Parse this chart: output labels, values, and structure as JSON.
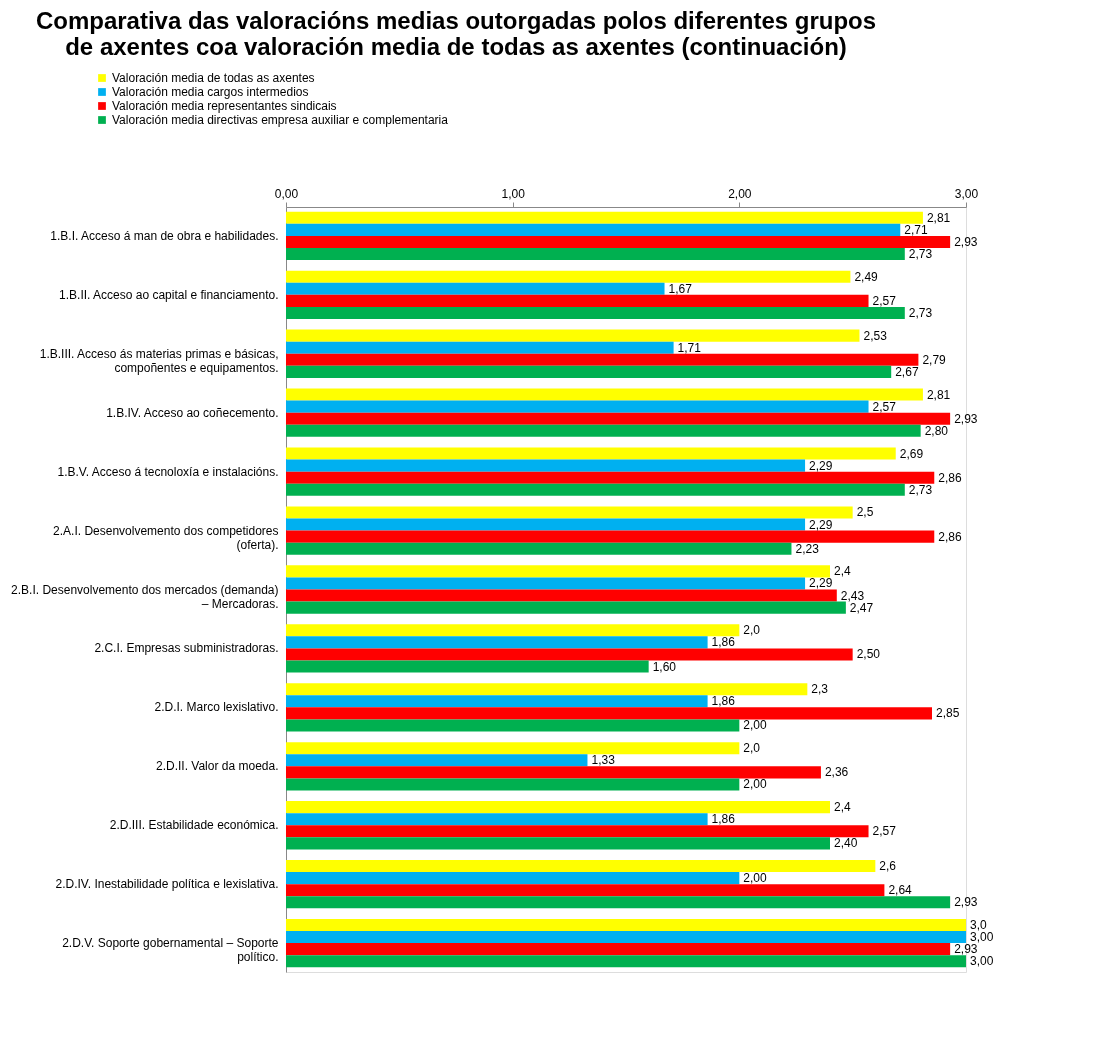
{
  "chart_data": {
    "type": "bar",
    "orientation": "horizontal",
    "title": "Comparativa das valoracións medias outorgadas polos diferentes grupos de axentes coa valoración media de todas as axentes (continuación)",
    "categories": [
      "1.B.I. Acceso á man de obra e habilidades.",
      "1.B.II. Acceso ao capital e financiamento.",
      "1.B.III. Acceso ás materias primas e básicas, compoñentes e equipamentos.",
      "1.B.IV. Acceso ao coñecemento.",
      "1.B.V. Acceso á tecnoloxía e instalacións.",
      "2.A.I. Desenvolvemento dos competidores (oferta).",
      "2.B.I. Desenvolvemento dos mercados (demanda) – Mercadoras.",
      "2.C.I. Empresas subministradoras.",
      "2.D.I. Marco lexislativo.",
      "2.D.II. Valor da moeda.",
      "2.D.III. Estabilidade económica.",
      "2.D.IV. Inestabilidade política e lexislativa.",
      "2.D.V. Soporte gobernamental – Soporte político."
    ],
    "series": [
      {
        "name": "Valoración media de todas as axentes",
        "color": "#ffff00",
        "values": [
          2.81,
          2.49,
          2.53,
          2.81,
          2.69,
          2.5,
          2.4,
          2.0,
          2.3,
          2.0,
          2.4,
          2.6,
          3.0
        ],
        "value_labels": [
          "2,81",
          "2,49",
          "2,53",
          "2,81",
          "2,69",
          "2,5",
          "2,4",
          "2,0",
          "2,3",
          "2,0",
          "2,4",
          "2,6",
          "3,0"
        ]
      },
      {
        "name": "Valoración media cargos intermedios",
        "color": "#00b0f0",
        "values": [
          2.71,
          1.67,
          1.71,
          2.57,
          2.29,
          2.29,
          2.29,
          1.86,
          1.86,
          1.33,
          1.86,
          2.0,
          3.0
        ],
        "value_labels": [
          "2,71",
          "1,67",
          "1,71",
          "2,57",
          "2,29",
          "2,29",
          "2,29",
          "1,86",
          "1,86",
          "1,33",
          "1,86",
          "2,00",
          "3,00"
        ]
      },
      {
        "name": "Valoración media representantes sindicais",
        "color": "#ff0000",
        "values": [
          2.93,
          2.57,
          2.79,
          2.93,
          2.86,
          2.86,
          2.43,
          2.5,
          2.85,
          2.36,
          2.57,
          2.64,
          2.93
        ],
        "value_labels": [
          "2,93",
          "2,57",
          "2,79",
          "2,93",
          "2,86",
          "2,86",
          "2,43",
          "2,50",
          "2,85",
          "2,36",
          "2,57",
          "2,64",
          "2,93"
        ]
      },
      {
        "name": "Valoración media directivas empresa auxiliar e complementaria",
        "color": "#00b050",
        "values": [
          2.73,
          2.73,
          2.67,
          2.8,
          2.73,
          2.23,
          2.47,
          1.6,
          2.0,
          2.0,
          2.4,
          2.93,
          3.0
        ],
        "value_labels": [
          "2,73",
          "2,73",
          "2,67",
          "2,80",
          "2,73",
          "2,23",
          "2,47",
          "1,60",
          "2,00",
          "2,00",
          "2,40",
          "2,93",
          "3,00"
        ]
      }
    ],
    "xlim": [
      0,
      3
    ],
    "xticks": [
      {
        "value": 0,
        "label": "0,00"
      },
      {
        "value": 1,
        "label": "1,00"
      },
      {
        "value": 2,
        "label": "2,00"
      },
      {
        "value": 3,
        "label": "3,00"
      }
    ],
    "legend": "top left",
    "grid": false
  }
}
